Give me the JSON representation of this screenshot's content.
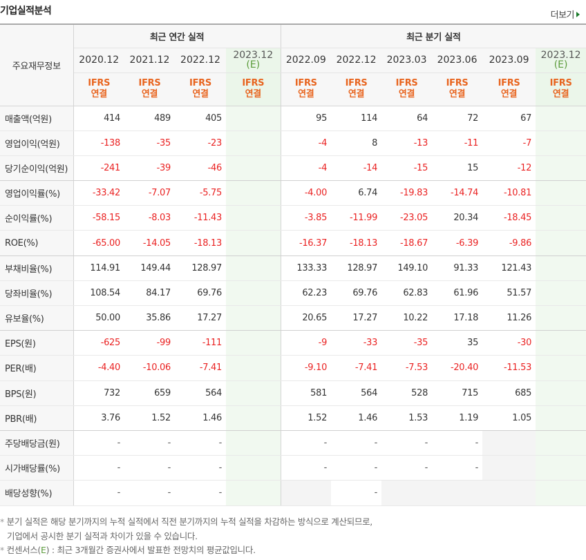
{
  "section": {
    "title": "기업실적분석",
    "more_label": "더보기"
  },
  "table": {
    "corner_label": "주요재무정보",
    "groups": {
      "annual": "최근 연간 실적",
      "quarterly": "최근 분기 실적"
    },
    "periods": [
      "2020.12",
      "2021.12",
      "2022.12",
      "2023.12",
      "2022.09",
      "2022.12",
      "2023.03",
      "2023.06",
      "2023.09",
      "2023.12"
    ],
    "estimate_mark": "(E)",
    "ifrs_line1": "IFRS",
    "ifrs_line2": "연결",
    "rows": [
      {
        "label": "매출액(억원)",
        "cells": [
          "414",
          "489",
          "405",
          "",
          "95",
          "114",
          "64",
          "72",
          "67",
          ""
        ]
      },
      {
        "label": "영업이익(억원)",
        "cells": [
          "-138",
          "-35",
          "-23",
          "",
          "-4",
          "8",
          "-13",
          "-11",
          "-7",
          ""
        ]
      },
      {
        "label": "당기순이익(억원)",
        "cells": [
          "-241",
          "-39",
          "-46",
          "",
          "-4",
          "-14",
          "-15",
          "15",
          "-12",
          ""
        ]
      },
      {
        "label": "영업이익률(%)",
        "cells": [
          "-33.42",
          "-7.07",
          "-5.75",
          "",
          "-4.00",
          "6.74",
          "-19.83",
          "-14.74",
          "-10.81",
          ""
        ]
      },
      {
        "label": "순이익률(%)",
        "cells": [
          "-58.15",
          "-8.03",
          "-11.43",
          "",
          "-3.85",
          "-11.99",
          "-23.05",
          "20.34",
          "-18.45",
          ""
        ]
      },
      {
        "label": "ROE(%)",
        "cells": [
          "-65.00",
          "-14.05",
          "-18.13",
          "",
          "-16.37",
          "-18.13",
          "-18.67",
          "-6.39",
          "-9.86",
          ""
        ]
      },
      {
        "label": "부채비율(%)",
        "cells": [
          "114.91",
          "149.44",
          "128.97",
          "",
          "133.33",
          "128.97",
          "149.10",
          "91.33",
          "121.43",
          ""
        ]
      },
      {
        "label": "당좌비율(%)",
        "cells": [
          "108.54",
          "84.17",
          "69.76",
          "",
          "62.23",
          "69.76",
          "62.83",
          "61.96",
          "51.57",
          ""
        ]
      },
      {
        "label": "유보율(%)",
        "cells": [
          "50.00",
          "35.86",
          "17.27",
          "",
          "20.65",
          "17.27",
          "10.22",
          "17.18",
          "11.26",
          ""
        ]
      },
      {
        "label": "EPS(원)",
        "cells": [
          "-625",
          "-99",
          "-111",
          "",
          "-9",
          "-33",
          "-35",
          "35",
          "-30",
          ""
        ]
      },
      {
        "label": "PER(배)",
        "cells": [
          "-4.40",
          "-10.06",
          "-7.41",
          "",
          "-9.10",
          "-7.41",
          "-7.53",
          "-20.40",
          "-11.53",
          ""
        ]
      },
      {
        "label": "BPS(원)",
        "cells": [
          "732",
          "659",
          "564",
          "",
          "581",
          "564",
          "528",
          "715",
          "685",
          ""
        ]
      },
      {
        "label": "PBR(배)",
        "cells": [
          "3.76",
          "1.52",
          "1.46",
          "",
          "1.52",
          "1.46",
          "1.53",
          "1.19",
          "1.05",
          ""
        ]
      },
      {
        "label": "주당배당금(원)",
        "cells": [
          "-",
          "-",
          "-",
          "",
          "-",
          "-",
          "-",
          "-",
          "",
          ""
        ]
      },
      {
        "label": "시가배당률(%)",
        "cells": [
          "-",
          "-",
          "-",
          "",
          "-",
          "-",
          "-",
          "-",
          "",
          ""
        ]
      },
      {
        "label": "배당성향(%)",
        "cells": [
          "-",
          "-",
          "-",
          "",
          "",
          "-",
          "",
          "",
          "",
          ""
        ]
      }
    ]
  },
  "footnotes": {
    "line1": "분기 실적은 해당 분기까지의 누적 실적에서 직전 분기까지의 누적 실적을 차감하는 방식으로 계산되므로,",
    "line2": "기업에서 공시한 분기 실적과 차이가 있을 수 있습니다.",
    "line3_prefix": "컨센서스(",
    "line3_mark": "E",
    "line3_suffix": ") : 최근 3개월간 증권사에서 발표한 전망치의 평균값입니다."
  },
  "colors": {
    "negative": "#ea2222",
    "ifrs": "#e8641e",
    "estimate_bg": "#f1f9f0",
    "accent_green": "#5a9b3a"
  }
}
